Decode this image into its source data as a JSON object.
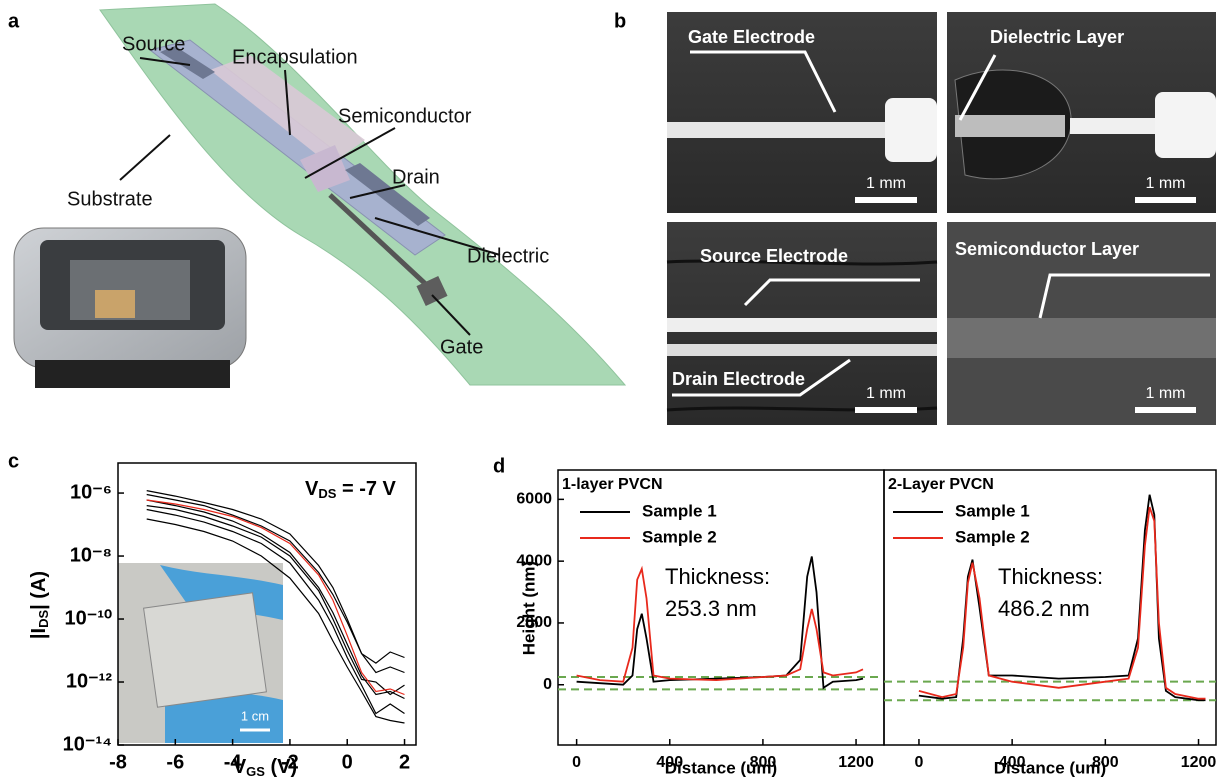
{
  "figure": {
    "panel_labels": [
      "a",
      "b",
      "c",
      "d"
    ]
  },
  "schematic": {
    "labels": [
      "Source",
      "Encapsulation",
      "Semiconductor",
      "Drain",
      "Dielectric",
      "Gate",
      "Substrate"
    ]
  },
  "micrographs": [
    {
      "labels": [
        "Gate Electrode"
      ],
      "scale_bar": "1 mm"
    },
    {
      "labels": [
        "Dielectric Layer"
      ],
      "scale_bar": "1 mm"
    },
    {
      "labels": [
        "Source Electrode",
        "Drain Electrode"
      ],
      "scale_bar": "1 mm"
    },
    {
      "labels": [
        "Semiconductor Layer"
      ],
      "scale_bar": "1 mm"
    }
  ],
  "chart_data": [
    {
      "type": "line",
      "log_y": true,
      "annotation": {
        "text": "V",
        "sub": "DS",
        "tail": " = -7 V"
      },
      "x_label": {
        "text": "V",
        "sub": "GS",
        "tail": " (V)"
      },
      "y_label": {
        "text": "|I",
        "sub": "DS",
        "tail": "| (A)"
      },
      "inset_scale_bar": "1 cm",
      "x": [
        -7,
        -6,
        -5,
        -4,
        -3,
        -2,
        -1,
        -0.5,
        0,
        0.5,
        1,
        1.5,
        2
      ],
      "series": [
        {
          "color": "#000000",
          "values": [
            1.2e-06,
            8e-07,
            5e-07,
            3e-07,
            1.5e-07,
            5e-08,
            5e-09,
            1e-09,
            1e-10,
            8e-12,
            2e-12,
            3e-12,
            2e-12
          ]
        },
        {
          "color": "#000000",
          "values": [
            6e-07,
            4e-07,
            2.5e-07,
            1.3e-07,
            5e-08,
            1.3e-08,
            1e-09,
            1.6e-10,
            1.6e-11,
            1.6e-12,
            4e-13,
            5e-13,
            3e-13
          ]
        },
        {
          "color": "#000000",
          "values": [
            3e-07,
            2e-07,
            1.2e-07,
            6e-08,
            2.5e-08,
            6e-09,
            4e-10,
            6e-11,
            6e-12,
            8e-13,
            1e-13,
            2e-13,
            1e-13
          ]
        },
        {
          "color": "#000000",
          "values": [
            1.5e-07,
            1e-07,
            6e-08,
            3e-08,
            1e-08,
            2e-09,
            1.5e-10,
            2e-11,
            3e-12,
            5e-13,
            8e-14,
            6e-14,
            5e-14
          ]
        },
        {
          "color": "#000000",
          "values": [
            9e-07,
            6e-07,
            4e-07,
            2e-07,
            9e-08,
            3e-08,
            3e-09,
            6e-10,
            8e-11,
            8e-12,
            4e-12,
            9e-12,
            6e-12
          ]
        },
        {
          "color": "#000000",
          "values": [
            4e-07,
            3e-07,
            1.8e-07,
            9e-08,
            4e-08,
            1e-08,
            8e-10,
            1e-10,
            1e-11,
            1.2e-12,
            1e-12,
            4e-13,
            8e-13
          ]
        },
        {
          "color": "#e8291c",
          "values": [
            6e-07,
            4.5e-07,
            3e-07,
            1.8e-07,
            8e-08,
            2.5e-08,
            2.5e-09,
            4e-10,
            3e-11,
            2e-12,
            5e-13,
            6e-13,
            4e-13
          ]
        }
      ],
      "xlim": [
        -8,
        2.4
      ],
      "xticks": [
        -8,
        -6,
        -4,
        -2,
        0,
        2
      ],
      "ylim": [
        1e-14,
        9e-06
      ],
      "yticks": [
        {
          "value": 1e-14,
          "label": "10⁻¹⁴"
        },
        {
          "value": 1e-12,
          "label": "10⁻¹²"
        },
        {
          "value": 1e-10,
          "label": "10⁻¹⁰"
        },
        {
          "value": 1e-08,
          "label": "10⁻⁸"
        },
        {
          "value": 1e-06,
          "label": "10⁻⁶"
        }
      ]
    },
    {
      "type": "line",
      "title": "1-layer PVCN",
      "annotation": [
        "Thickness:",
        "253.3 nm"
      ],
      "x_label": "Distance (um)",
      "y_label": "Height (nm)",
      "x": [
        0,
        100,
        200,
        240,
        260,
        280,
        300,
        330,
        400,
        600,
        800,
        900,
        960,
        990,
        1010,
        1030,
        1060,
        1100,
        1200,
        1230
      ],
      "series": [
        {
          "name": "Sample 1",
          "color": "#000000",
          "values": [
            100,
            50,
            0,
            300,
            1800,
            2300,
            1500,
            100,
            150,
            200,
            250,
            300,
            800,
            3500,
            4150,
            3000,
            -100,
            100,
            150,
            200
          ]
        },
        {
          "name": "Sample 2",
          "color": "#e8291c",
          "values": [
            300,
            150,
            100,
            1200,
            3400,
            3750,
            2800,
            300,
            200,
            150,
            250,
            300,
            500,
            1800,
            2450,
            1800,
            400,
            300,
            400,
            500
          ]
        }
      ],
      "reference_lines": {
        "values": [
          250,
          -150
        ],
        "color": "#6aa84f"
      },
      "xlim": [
        -80,
        1320
      ],
      "xticks": [
        0,
        400,
        800,
        1200
      ],
      "ylim": [
        -1950,
        6950
      ],
      "yticks": [
        0,
        2000,
        4000,
        6000
      ]
    },
    {
      "type": "line",
      "title": "2-Layer PVCN",
      "annotation": [
        "Thickness:",
        "486.2 nm"
      ],
      "x_label": "Distance (um)",
      "x": [
        0,
        100,
        160,
        190,
        210,
        230,
        260,
        300,
        400,
        600,
        800,
        900,
        940,
        970,
        990,
        1010,
        1030,
        1060,
        1100,
        1200,
        1230
      ],
      "series": [
        {
          "name": "Sample 1",
          "color": "#000000",
          "values": [
            -350,
            -450,
            -400,
            1500,
            3500,
            4050,
            2500,
            300,
            300,
            200,
            250,
            300,
            1500,
            5000,
            6150,
            5500,
            1500,
            -200,
            -400,
            -500,
            -500
          ]
        },
        {
          "name": "Sample 2",
          "color": "#e8291c",
          "values": [
            -200,
            -400,
            -300,
            1200,
            3300,
            3950,
            2800,
            300,
            100,
            -100,
            100,
            200,
            1200,
            4500,
            5750,
            5300,
            2000,
            -100,
            -300,
            -450,
            -450
          ]
        }
      ],
      "reference_lines": {
        "values": [
          100,
          -500
        ],
        "color": "#6aa84f"
      },
      "xlim": [
        -150,
        1275
      ],
      "xticks": [
        0,
        400,
        800,
        1200
      ],
      "ylim": [
        -1950,
        6950
      ]
    }
  ]
}
